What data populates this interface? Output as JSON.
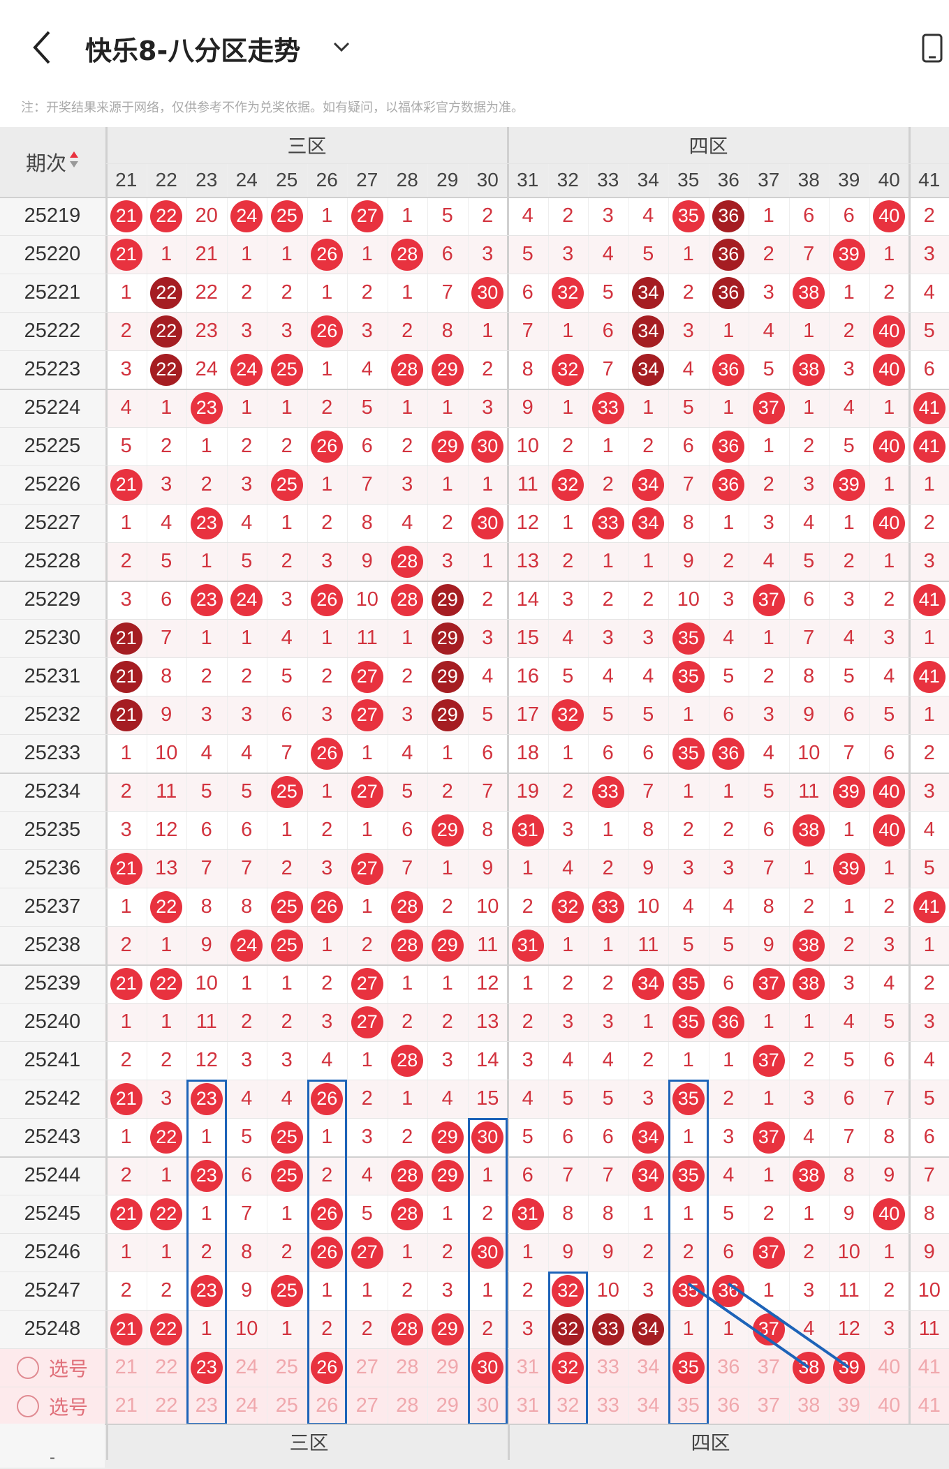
{
  "header": {
    "title": "快乐8-八分区走势",
    "back_icon": "back-arrow-icon",
    "dropdown_icon": "chevron-down-icon",
    "right_icon": "device-icon"
  },
  "note": "注：开奖结果来源于网络，仅供参考不作为兑奖依据。如有疑问，以福体彩官方数据为准。",
  "table": {
    "issue_header": "期次",
    "sort_icon": "sort-arrows-icon",
    "zones": [
      "三区",
      "四区"
    ],
    "numbers": [
      21,
      22,
      23,
      24,
      25,
      26,
      27,
      28,
      29,
      30,
      31,
      32,
      33,
      34,
      35,
      36,
      37,
      38,
      39,
      40,
      41
    ],
    "rows": [
      {
        "issue": "25219",
        "cells": [
          "21*",
          "22*",
          "20",
          "24*",
          "25*",
          "1",
          "27*",
          "1",
          "5",
          "2",
          "4",
          "2",
          "3",
          "4",
          "35*",
          "36#",
          "1",
          "6",
          "6",
          "40*",
          "2"
        ]
      },
      {
        "issue": "25220",
        "cells": [
          "21*",
          "1",
          "21",
          "1",
          "1",
          "26*",
          "1",
          "28*",
          "6",
          "3",
          "5",
          "3",
          "4",
          "5",
          "1",
          "36#",
          "2",
          "7",
          "39*",
          "1",
          "3"
        ]
      },
      {
        "issue": "25221",
        "cells": [
          "1",
          "22#",
          "22",
          "2",
          "2",
          "1",
          "2",
          "1",
          "7",
          "30*",
          "6",
          "32*",
          "5",
          "34#",
          "2",
          "36#",
          "3",
          "38*",
          "1",
          "2",
          "4"
        ]
      },
      {
        "issue": "25222",
        "cells": [
          "2",
          "22#",
          "23",
          "3",
          "3",
          "26*",
          "3",
          "2",
          "8",
          "1",
          "7",
          "1",
          "6",
          "34#",
          "3",
          "1",
          "4",
          "1",
          "2",
          "40*",
          "5"
        ]
      },
      {
        "issue": "25223",
        "cells": [
          "3",
          "22#",
          "24",
          "24*",
          "25*",
          "1",
          "4",
          "28*",
          "29*",
          "2",
          "8",
          "32*",
          "7",
          "34#",
          "4",
          "36*",
          "5",
          "38*",
          "3",
          "40*",
          "6"
        ]
      },
      {
        "issue": "25224",
        "cells": [
          "4",
          "1",
          "23*",
          "1",
          "1",
          "2",
          "5",
          "1",
          "1",
          "3",
          "9",
          "1",
          "33*",
          "1",
          "5",
          "1",
          "37*",
          "1",
          "4",
          "1",
          "41*"
        ]
      },
      {
        "issue": "25225",
        "cells": [
          "5",
          "2",
          "1",
          "2",
          "2",
          "26*",
          "6",
          "2",
          "29*",
          "30*",
          "10",
          "2",
          "1",
          "2",
          "6",
          "36*",
          "1",
          "2",
          "5",
          "40*",
          "41*"
        ]
      },
      {
        "issue": "25226",
        "cells": [
          "21*",
          "3",
          "2",
          "3",
          "25*",
          "1",
          "7",
          "3",
          "1",
          "1",
          "11",
          "32*",
          "2",
          "34*",
          "7",
          "36*",
          "2",
          "3",
          "39*",
          "1",
          "1"
        ]
      },
      {
        "issue": "25227",
        "cells": [
          "1",
          "4",
          "23*",
          "4",
          "1",
          "2",
          "8",
          "4",
          "2",
          "30*",
          "12",
          "1",
          "33*",
          "34*",
          "8",
          "1",
          "3",
          "4",
          "1",
          "40*",
          "2"
        ]
      },
      {
        "issue": "25228",
        "cells": [
          "2",
          "5",
          "1",
          "5",
          "2",
          "3",
          "9",
          "28*",
          "3",
          "1",
          "13",
          "2",
          "1",
          "1",
          "9",
          "2",
          "4",
          "5",
          "2",
          "1",
          "3"
        ]
      },
      {
        "issue": "25229",
        "cells": [
          "3",
          "6",
          "23*",
          "24*",
          "3",
          "26*",
          "10",
          "28*",
          "29#",
          "2",
          "14",
          "3",
          "2",
          "2",
          "10",
          "3",
          "37*",
          "6",
          "3",
          "2",
          "41*"
        ]
      },
      {
        "issue": "25230",
        "cells": [
          "21#",
          "7",
          "1",
          "1",
          "4",
          "1",
          "11",
          "1",
          "29#",
          "3",
          "15",
          "4",
          "3",
          "3",
          "35*",
          "4",
          "1",
          "7",
          "4",
          "3",
          "1"
        ]
      },
      {
        "issue": "25231",
        "cells": [
          "21#",
          "8",
          "2",
          "2",
          "5",
          "2",
          "27*",
          "2",
          "29#",
          "4",
          "16",
          "5",
          "4",
          "4",
          "35*",
          "5",
          "2",
          "8",
          "5",
          "4",
          "41*"
        ]
      },
      {
        "issue": "25232",
        "cells": [
          "21#",
          "9",
          "3",
          "3",
          "6",
          "3",
          "27*",
          "3",
          "29#",
          "5",
          "17",
          "32*",
          "5",
          "5",
          "1",
          "6",
          "3",
          "9",
          "6",
          "5",
          "1"
        ]
      },
      {
        "issue": "25233",
        "cells": [
          "1",
          "10",
          "4",
          "4",
          "7",
          "26*",
          "1",
          "4",
          "1",
          "6",
          "18",
          "1",
          "6",
          "6",
          "35*",
          "36*",
          "4",
          "10",
          "7",
          "6",
          "2"
        ]
      },
      {
        "issue": "25234",
        "cells": [
          "2",
          "11",
          "5",
          "5",
          "25*",
          "1",
          "27*",
          "5",
          "2",
          "7",
          "19",
          "2",
          "33*",
          "7",
          "1",
          "1",
          "5",
          "11",
          "39*",
          "40*",
          "3"
        ]
      },
      {
        "issue": "25235",
        "cells": [
          "3",
          "12",
          "6",
          "6",
          "1",
          "2",
          "1",
          "6",
          "29*",
          "8",
          "31*",
          "3",
          "1",
          "8",
          "2",
          "2",
          "6",
          "38*",
          "1",
          "40*",
          "4"
        ]
      },
      {
        "issue": "25236",
        "cells": [
          "21*",
          "13",
          "7",
          "7",
          "2",
          "3",
          "27*",
          "7",
          "1",
          "9",
          "1",
          "4",
          "2",
          "9",
          "3",
          "3",
          "7",
          "1",
          "39*",
          "1",
          "5"
        ]
      },
      {
        "issue": "25237",
        "cells": [
          "1",
          "22*",
          "8",
          "8",
          "25*",
          "26*",
          "1",
          "28*",
          "2",
          "10",
          "2",
          "32*",
          "33*",
          "10",
          "4",
          "4",
          "8",
          "2",
          "1",
          "2",
          "41*"
        ]
      },
      {
        "issue": "25238",
        "cells": [
          "2",
          "1",
          "9",
          "24*",
          "25*",
          "1",
          "2",
          "28*",
          "29*",
          "11",
          "31*",
          "1",
          "1",
          "11",
          "5",
          "5",
          "9",
          "38*",
          "2",
          "3",
          "1"
        ]
      },
      {
        "issue": "25239",
        "cells": [
          "21*",
          "22*",
          "10",
          "1",
          "1",
          "2",
          "27*",
          "1",
          "1",
          "12",
          "1",
          "2",
          "2",
          "34*",
          "35*",
          "6",
          "37*",
          "38*",
          "3",
          "4",
          "2"
        ]
      },
      {
        "issue": "25240",
        "cells": [
          "1",
          "1",
          "11",
          "2",
          "2",
          "3",
          "27*",
          "2",
          "2",
          "13",
          "2",
          "3",
          "3",
          "1",
          "35*",
          "36*",
          "1",
          "1",
          "4",
          "5",
          "3"
        ]
      },
      {
        "issue": "25241",
        "cells": [
          "2",
          "2",
          "12",
          "3",
          "3",
          "4",
          "1",
          "28*",
          "3",
          "14",
          "3",
          "4",
          "4",
          "2",
          "1",
          "1",
          "37*",
          "2",
          "5",
          "6",
          "4"
        ]
      },
      {
        "issue": "25242",
        "cells": [
          "21*",
          "3",
          "23*",
          "4",
          "4",
          "26*",
          "2",
          "1",
          "4",
          "15",
          "4",
          "5",
          "5",
          "3",
          "35*",
          "2",
          "1",
          "3",
          "6",
          "7",
          "5"
        ]
      },
      {
        "issue": "25243",
        "cells": [
          "1",
          "22*",
          "1",
          "5",
          "25*",
          "1",
          "3",
          "2",
          "29*",
          "30*",
          "5",
          "6",
          "6",
          "34*",
          "1",
          "3",
          "37*",
          "4",
          "7",
          "8",
          "6"
        ]
      },
      {
        "issue": "25244",
        "cells": [
          "2",
          "1",
          "23*",
          "6",
          "25*",
          "2",
          "4",
          "28*",
          "29*",
          "1",
          "6",
          "7",
          "7",
          "34*",
          "35*",
          "4",
          "1",
          "38*",
          "8",
          "9",
          "7"
        ]
      },
      {
        "issue": "25245",
        "cells": [
          "21*",
          "22*",
          "1",
          "7",
          "1",
          "26*",
          "5",
          "28*",
          "1",
          "2",
          "31*",
          "8",
          "8",
          "1",
          "1",
          "5",
          "2",
          "1",
          "9",
          "40*",
          "8"
        ]
      },
      {
        "issue": "25246",
        "cells": [
          "1",
          "1",
          "2",
          "8",
          "2",
          "26*",
          "27*",
          "1",
          "2",
          "30*",
          "1",
          "9",
          "9",
          "2",
          "2",
          "6",
          "37*",
          "2",
          "10",
          "1",
          "9"
        ]
      },
      {
        "issue": "25247",
        "cells": [
          "2",
          "2",
          "23*",
          "9",
          "25*",
          "1",
          "1",
          "2",
          "3",
          "1",
          "2",
          "32*",
          "10",
          "3",
          "35*",
          "36*",
          "1",
          "3",
          "11",
          "2",
          "10"
        ]
      },
      {
        "issue": "25248",
        "cells": [
          "21*",
          "22*",
          "1",
          "10",
          "1",
          "2",
          "2",
          "28*",
          "29*",
          "2",
          "3",
          "32#",
          "33#",
          "34#",
          "1",
          "1",
          "37*",
          "4",
          "12",
          "3",
          "11"
        ]
      }
    ],
    "select_rows": [
      {
        "label": "选号",
        "cells": [
          "21",
          "22",
          "23*",
          "24",
          "25",
          "26*",
          "27",
          "28",
          "29",
          "30*",
          "31",
          "32*",
          "33",
          "34",
          "35*",
          "36",
          "37",
          "38*",
          "39*",
          "40",
          "41"
        ]
      },
      {
        "label": "选号",
        "cells": [
          "21",
          "22",
          "23",
          "24",
          "25",
          "26",
          "27",
          "28",
          "29",
          "30",
          "31",
          "32",
          "33",
          "34",
          "35",
          "36",
          "37",
          "38",
          "39",
          "40",
          "41"
        ]
      }
    ]
  },
  "footer": {
    "zones": [
      "三区",
      "四区"
    ],
    "issue_header": "-"
  },
  "colors": {
    "ball": "#e8323f",
    "ball_dark": "#a51d22",
    "miss_text": "#d2333e",
    "highlight_box": "#1d63b8"
  }
}
